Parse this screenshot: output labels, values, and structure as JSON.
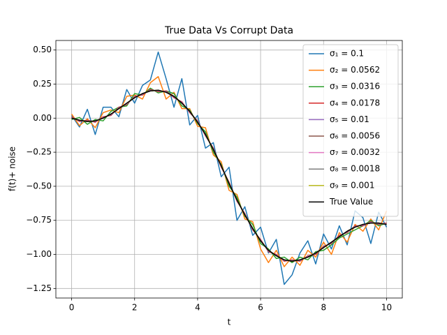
{
  "chart_data": {
    "type": "line",
    "title": "True Data Vs Corrupt Data",
    "xlabel": "t",
    "ylabel": "f(t)+ noise",
    "x": [
      0,
      0.25,
      0.5,
      0.75,
      1,
      1.25,
      1.5,
      1.75,
      2,
      2.25,
      2.5,
      2.75,
      3,
      3.25,
      3.5,
      3.75,
      4,
      4.25,
      4.5,
      4.75,
      5,
      5.25,
      5.5,
      5.75,
      6,
      6.25,
      6.5,
      6.75,
      7,
      7.25,
      7.5,
      7.75,
      8,
      8.25,
      8.5,
      8.75,
      9,
      9.25,
      9.5,
      9.75,
      10
    ],
    "series": [
      {
        "name": "σ₁ = 0.1",
        "color": "#1f77b4",
        "values": [
          0.02,
          -0.065,
          0.065,
          -0.12,
          0.08,
          0.08,
          0.01,
          0.21,
          0.11,
          0.24,
          0.28,
          0.485,
          0.29,
          0.08,
          0.29,
          -0.05,
          0.02,
          -0.22,
          -0.18,
          -0.43,
          -0.36,
          -0.75,
          -0.65,
          -0.86,
          -0.8,
          -0.99,
          -0.89,
          -1.22,
          -1.15,
          -0.99,
          -0.9,
          -1.07,
          -0.85,
          -0.96,
          -0.79,
          -0.93,
          -0.68,
          -0.73,
          -0.92,
          -0.69,
          -0.8
        ]
      },
      {
        "name": "σ₂ = 0.0562",
        "color": "#ff7f0e",
        "values": [
          0.03,
          -0.055,
          -0.005,
          -0.07,
          0.04,
          0.06,
          0.04,
          0.16,
          0.17,
          0.14,
          0.26,
          0.305,
          0.14,
          0.19,
          0.07,
          0.07,
          -0.06,
          -0.07,
          -0.27,
          -0.32,
          -0.53,
          -0.56,
          -0.74,
          -0.76,
          -0.96,
          -1.06,
          -0.97,
          -1.09,
          -1.02,
          -1.08,
          -0.97,
          -1.02,
          -0.91,
          -1.0,
          -0.84,
          -0.91,
          -0.78,
          -0.83,
          -0.74,
          -0.82,
          -0.68
        ]
      },
      {
        "name": "σ₃ = 0.0316",
        "color": "#2ca02c",
        "values": [
          -0.01,
          0.005,
          -0.045,
          -0.01,
          -0.02,
          0.05,
          0.08,
          0.09,
          0.18,
          0.17,
          0.22,
          0.185,
          0.2,
          0.18,
          0.09,
          0.06,
          -0.04,
          -0.1,
          -0.25,
          -0.34,
          -0.5,
          -0.58,
          -0.72,
          -0.78,
          -0.92,
          -0.96,
          -1.03,
          -1.02,
          -1.06,
          -1.02,
          -1.04,
          -0.98,
          -0.97,
          -0.93,
          -0.88,
          -0.85,
          -0.82,
          -0.79,
          -0.75,
          -0.79,
          -0.77
        ]
      },
      {
        "name": "σ₄ = 0.0178",
        "color": "#d62728",
        "values": [
          0.01,
          -0.025,
          -0.015,
          -0.03,
          0.01,
          0.02,
          0.08,
          0.1,
          0.16,
          0.17,
          0.21,
          0.195,
          0.2,
          0.15,
          0.12,
          0.04,
          -0.02,
          -0.13,
          -0.22,
          -0.36,
          -0.47,
          -0.61,
          -0.7,
          -0.82,
          -0.89,
          -0.98,
          -1.0,
          -1.05,
          -1.04,
          -1.05,
          -1.01,
          -1.0,
          -0.94,
          -0.92,
          -0.86,
          -0.84,
          -0.79,
          -0.79,
          -0.76,
          -0.78,
          -0.77
        ]
      },
      {
        "name": "σ₅ = 0.01",
        "color": "#9467bd",
        "values": [
          0.005,
          -0.02,
          -0.02,
          -0.025,
          0.005,
          0.025,
          0.075,
          0.105,
          0.155,
          0.175,
          0.205,
          0.2,
          0.195,
          0.155,
          0.115,
          0.045,
          -0.025,
          -0.125,
          -0.225,
          -0.355,
          -0.475,
          -0.605,
          -0.705,
          -0.815,
          -0.895,
          -0.975,
          -1.005,
          -1.045,
          -1.045,
          -1.045,
          -1.015,
          -0.995,
          -0.945,
          -0.915,
          -0.865,
          -0.835,
          -0.795,
          -0.785,
          -0.765,
          -0.775,
          -0.775
        ]
      },
      {
        "name": "σ₆ = 0.0056",
        "color": "#8c564b",
        "values": [
          0,
          -0.015,
          -0.025,
          -0.02,
          0,
          0.03,
          0.07,
          0.11,
          0.15,
          0.18,
          0.2,
          0.205,
          0.19,
          0.16,
          0.11,
          0.05,
          -0.03,
          -0.12,
          -0.23,
          -0.35,
          -0.48,
          -0.6,
          -0.71,
          -0.81,
          -0.9,
          -0.97,
          -1.01,
          -1.04,
          -1.05,
          -1.04,
          -1.02,
          -0.99,
          -0.95,
          -0.91,
          -0.87,
          -0.83,
          -0.8,
          -0.78,
          -0.77,
          -0.77,
          -0.78
        ]
      },
      {
        "name": "σ₇ = 0.0032",
        "color": "#e377c2",
        "values": [
          0,
          -0.015,
          -0.025,
          -0.02,
          0,
          0.03,
          0.07,
          0.11,
          0.15,
          0.18,
          0.2,
          0.205,
          0.19,
          0.16,
          0.11,
          0.05,
          -0.03,
          -0.12,
          -0.23,
          -0.35,
          -0.48,
          -0.6,
          -0.71,
          -0.81,
          -0.9,
          -0.97,
          -1.01,
          -1.04,
          -1.05,
          -1.04,
          -1.02,
          -0.99,
          -0.95,
          -0.91,
          -0.87,
          -0.83,
          -0.8,
          -0.78,
          -0.77,
          -0.77,
          -0.78
        ]
      },
      {
        "name": "σ₈ = 0.0018",
        "color": "#7f7f7f",
        "values": [
          0,
          -0.015,
          -0.025,
          -0.02,
          0,
          0.03,
          0.07,
          0.11,
          0.15,
          0.18,
          0.2,
          0.205,
          0.19,
          0.16,
          0.11,
          0.05,
          -0.03,
          -0.12,
          -0.23,
          -0.35,
          -0.48,
          -0.6,
          -0.71,
          -0.81,
          -0.9,
          -0.97,
          -1.01,
          -1.04,
          -1.05,
          -1.04,
          -1.02,
          -0.99,
          -0.95,
          -0.91,
          -0.87,
          -0.83,
          -0.8,
          -0.78,
          -0.77,
          -0.77,
          -0.78
        ]
      },
      {
        "name": "σ₉ = 0.001",
        "color": "#bcbd22",
        "values": [
          0,
          -0.015,
          -0.025,
          -0.02,
          0,
          0.03,
          0.07,
          0.11,
          0.15,
          0.18,
          0.2,
          0.205,
          0.19,
          0.16,
          0.11,
          0.05,
          -0.03,
          -0.12,
          -0.23,
          -0.35,
          -0.48,
          -0.6,
          -0.71,
          -0.81,
          -0.9,
          -0.97,
          -1.01,
          -1.04,
          -1.05,
          -1.04,
          -1.02,
          -0.99,
          -0.95,
          -0.91,
          -0.87,
          -0.83,
          -0.8,
          -0.78,
          -0.77,
          -0.77,
          -0.78
        ]
      },
      {
        "name": "True Value",
        "color": "#000000",
        "values": [
          0,
          -0.015,
          -0.025,
          -0.02,
          0,
          0.03,
          0.07,
          0.11,
          0.15,
          0.18,
          0.2,
          0.205,
          0.19,
          0.16,
          0.11,
          0.05,
          -0.03,
          -0.12,
          -0.23,
          -0.35,
          -0.48,
          -0.6,
          -0.71,
          -0.81,
          -0.9,
          -0.97,
          -1.01,
          -1.04,
          -1.05,
          -1.04,
          -1.02,
          -0.99,
          -0.95,
          -0.91,
          -0.87,
          -0.83,
          -0.8,
          -0.78,
          -0.77,
          -0.77,
          -0.78
        ]
      }
    ],
    "xlim": [
      -0.5,
      10.5
    ],
    "xticks": [
      0,
      2,
      4,
      6,
      8,
      10
    ],
    "ylim": [
      -1.32,
      0.57
    ],
    "yticks": [
      {
        "value": 0.5,
        "label": "0.50"
      },
      {
        "value": 0.25,
        "label": "0.25"
      },
      {
        "value": 0,
        "label": "0.00"
      },
      {
        "value": -0.25,
        "label": "−0.25"
      },
      {
        "value": -0.5,
        "label": "−0.50"
      },
      {
        "value": -0.75,
        "label": "−0.75"
      },
      {
        "value": -1,
        "label": "−1.00"
      },
      {
        "value": -1.25,
        "label": "−1.25"
      }
    ],
    "grid": true,
    "legend": "upper right"
  }
}
